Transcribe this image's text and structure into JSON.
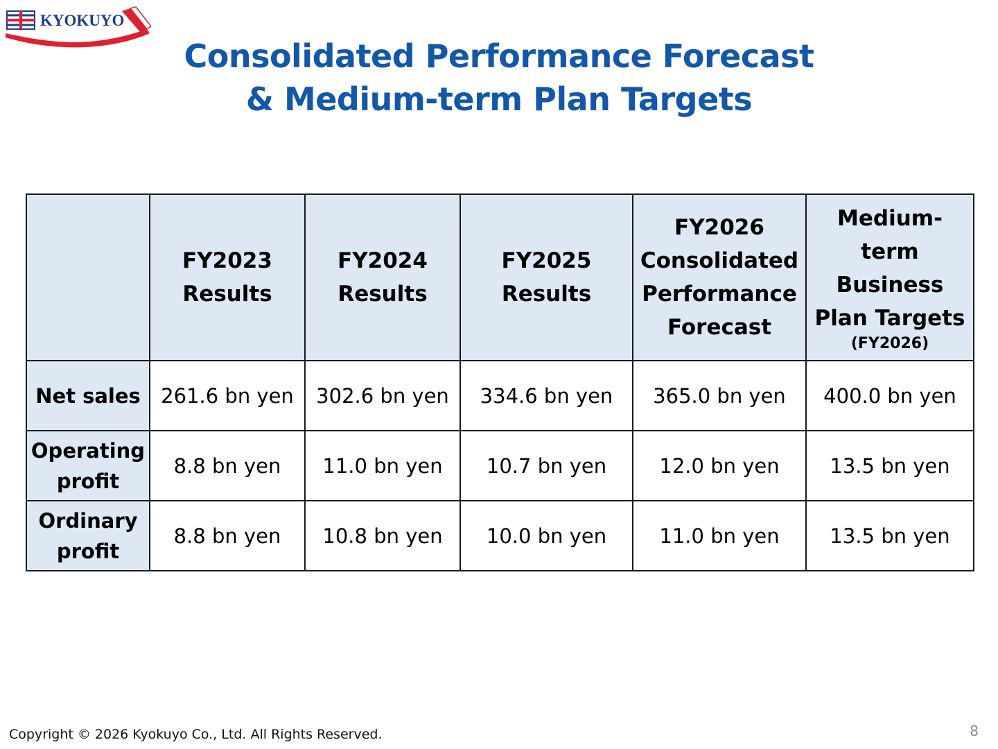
{
  "logo": {
    "text": "KYOKUYO",
    "colors": {
      "blue": "#1e3d8f",
      "red": "#e0202e"
    }
  },
  "title": {
    "line1": "Consolidated Performance Forecast",
    "line2": "& Medium-term Plan Targets",
    "color": "#1257a8"
  },
  "table": {
    "header_fill": "#dde8f4",
    "columns": [
      {
        "label": "FY2023 Results",
        "sub": ""
      },
      {
        "label": "FY2024 Results",
        "sub": ""
      },
      {
        "label": "FY2025 Results",
        "sub": ""
      },
      {
        "label": "FY2026 Consolidated Performance Forecast",
        "sub": ""
      },
      {
        "label": "Medium-term Business Plan Targets",
        "sub": "(FY2026)"
      }
    ],
    "rows": [
      {
        "label": "Net sales",
        "cells": [
          "261.6 bn yen",
          "302.6 bn yen",
          "334.6 bn yen",
          "365.0 bn yen",
          "400.0 bn yen"
        ]
      },
      {
        "label": "Operating profit",
        "cells": [
          "8.8 bn yen",
          "11.0 bn yen",
          "10.7 bn yen",
          "12.0 bn yen",
          "13.5 bn yen"
        ]
      },
      {
        "label": "Ordinary profit",
        "cells": [
          "8.8 bn yen",
          "10.8 bn yen",
          "10.0 bn yen",
          "11.0 bn yen",
          "13.5 bn yen"
        ]
      }
    ]
  },
  "footer": {
    "copyright": "Copyright © 2026 Kyokuyo Co., Ltd. All Rights Reserved.",
    "page_number": "8"
  }
}
